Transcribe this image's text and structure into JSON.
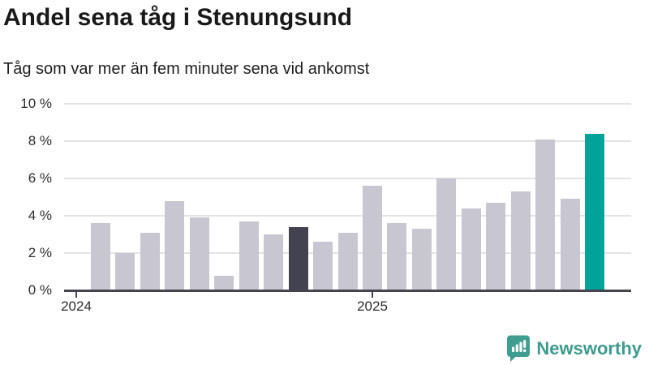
{
  "header": {
    "title": "Andel sena tåg i Stenungsund",
    "subtitle": "Tåg som var mer än fem minuter sena vid ankomst"
  },
  "chart_data": {
    "type": "bar",
    "title": "Andel sena tåg i Stenungsund",
    "subtitle": "Tåg som var mer än fem minuter sena vid ankomst",
    "unit": "%",
    "x": [
      "2024-02",
      "2024-03",
      "2024-04",
      "2024-05",
      "2024-06",
      "2024-07",
      "2024-08",
      "2024-09",
      "2024-10",
      "2024-11",
      "2024-12",
      "2025-01",
      "2025-02",
      "2025-03",
      "2025-04",
      "2025-05",
      "2025-06",
      "2025-07",
      "2025-08",
      "2025-09",
      "2025-10"
    ],
    "values": [
      3.6,
      2.0,
      3.1,
      4.8,
      3.9,
      0.8,
      3.7,
      3.0,
      3.4,
      2.6,
      3.1,
      5.6,
      3.6,
      3.3,
      6.0,
      4.4,
      4.7,
      5.3,
      8.1,
      4.9,
      8.4
    ],
    "highlight_dark_index": 8,
    "highlight_accent_index": 20,
    "ylim": [
      0,
      10
    ],
    "grid": true,
    "legend": "none",
    "yticks": {
      "values": [
        0,
        2,
        4,
        6,
        8,
        10
      ],
      "labels": [
        "0 %",
        "2 %",
        "4 %",
        "6 %",
        "8 %",
        "10 %"
      ]
    },
    "xticks": [
      {
        "label": "2024",
        "slot": -1
      },
      {
        "label": "2025",
        "slot": 11
      }
    ],
    "colors": {
      "bar": "#c8c7d1",
      "dark": "#434251",
      "accent": "#00a39a",
      "grid": "#e3e3e5",
      "axis": "#45444e"
    }
  },
  "footer": {
    "brand": "Newsworthy",
    "brand_color": "#3d9b8e",
    "logo_icon": "newsworthy-speech-bubble-chart-icon"
  }
}
